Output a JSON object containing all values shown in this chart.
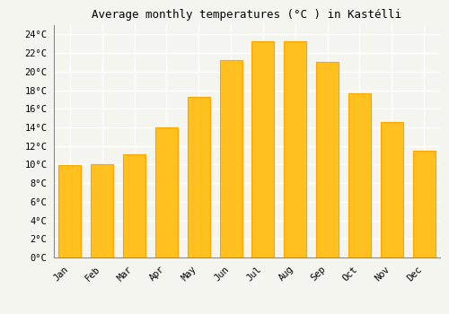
{
  "title": "Average monthly temperatures (°C ) in Kastélli",
  "months": [
    "Jan",
    "Feb",
    "Mar",
    "Apr",
    "May",
    "Jun",
    "Jul",
    "Aug",
    "Sep",
    "Oct",
    "Nov",
    "Dec"
  ],
  "values": [
    9.9,
    10.0,
    11.1,
    14.0,
    17.3,
    21.2,
    23.3,
    23.3,
    21.0,
    17.7,
    14.6,
    11.5
  ],
  "bar_color": "#FFC020",
  "bar_edge_color": "#FFA500",
  "background_color": "#F5F5F0",
  "grid_color": "#FFFFFF",
  "ylim": [
    0,
    25
  ],
  "ytick_step": 2,
  "title_fontsize": 9,
  "tick_fontsize": 7.5,
  "font_family": "monospace"
}
